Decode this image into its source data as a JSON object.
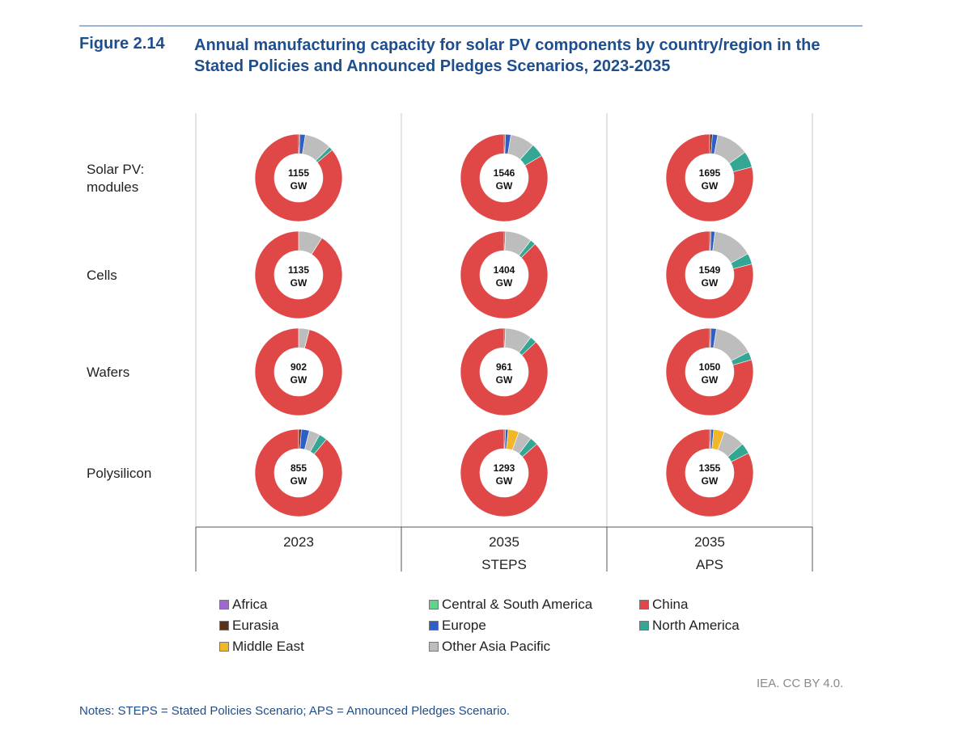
{
  "figure": {
    "label": "Figure 2.14",
    "title": "Annual manufacturing capacity for solar PV components by country/region in the Stated Policies and Announced Pledges Scenarios, 2023-2035"
  },
  "credit": "IEA. CC BY 4.0.",
  "notes": "Notes: STEPS = Stated Policies Scenario; APS = Announced Pledges Scenario.",
  "chart_data": {
    "type": "donut-grid",
    "title": "Annual manufacturing capacity for solar PV components by country/region in the Stated Policies and Announced Pledges Scenarios, 2023-2035",
    "rows": [
      "Solar PV:\nmodules",
      "Cells",
      "Wafers",
      "Polysilicon"
    ],
    "columns": [
      {
        "year": "2023",
        "scenario": ""
      },
      {
        "year": "2035",
        "scenario": "STEPS"
      },
      {
        "year": "2035",
        "scenario": "APS"
      }
    ],
    "regions": [
      {
        "name": "Africa",
        "color": "#a066d3"
      },
      {
        "name": "Central & South America",
        "color": "#5fd38a"
      },
      {
        "name": "China",
        "color": "#e04848"
      },
      {
        "name": "Eurasia",
        "color": "#5a3018"
      },
      {
        "name": "Europe",
        "color": "#2e5fc9"
      },
      {
        "name": "North America",
        "color": "#33a694"
      },
      {
        "name": "Middle East",
        "color": "#f2b629"
      },
      {
        "name": "Other Asia Pacific",
        "color": "#bdbdbd"
      }
    ],
    "legend_order": [
      "Africa",
      "Central & South America",
      "China",
      "Eurasia",
      "Europe",
      "North America",
      "Middle East",
      "Other Asia Pacific"
    ],
    "segment_order": [
      "Africa",
      "Eurasia",
      "Europe",
      "Middle East",
      "Other Asia Pacific",
      "Central & South America",
      "North America",
      "China"
    ],
    "unit": "GW",
    "cells": [
      [
        {
          "total": "1155",
          "shares": {
            "Europe": 0.02,
            "Eurasia": 0.005,
            "Other Asia Pacific": 0.1,
            "North America": 0.015,
            "China": 0.86
          }
        },
        {
          "total": "1546",
          "shares": {
            "Europe": 0.02,
            "Eurasia": 0.005,
            "Other Asia Pacific": 0.09,
            "North America": 0.05,
            "China": 0.835
          }
        },
        {
          "total": "1695",
          "shares": {
            "Europe": 0.02,
            "Eurasia": 0.01,
            "Other Asia Pacific": 0.12,
            "North America": 0.06,
            "China": 0.79
          }
        }
      ],
      [
        {
          "total": "1135",
          "shares": {
            "Other Asia Pacific": 0.09,
            "China": 0.91
          }
        },
        {
          "total": "1404",
          "shares": {
            "Eurasia": 0.005,
            "Other Asia Pacific": 0.1,
            "North America": 0.02,
            "China": 0.875
          }
        },
        {
          "total": "1549",
          "shares": {
            "Europe": 0.015,
            "Eurasia": 0.005,
            "Other Asia Pacific": 0.15,
            "North America": 0.04,
            "China": 0.79
          }
        }
      ],
      [
        {
          "total": "902",
          "shares": {
            "Other Asia Pacific": 0.04,
            "China": 0.96
          }
        },
        {
          "total": "961",
          "shares": {
            "Eurasia": 0.005,
            "Other Asia Pacific": 0.1,
            "North America": 0.025,
            "China": 0.87
          }
        },
        {
          "total": "1050",
          "shares": {
            "Europe": 0.02,
            "Eurasia": 0.005,
            "Other Asia Pacific": 0.15,
            "North America": 0.03,
            "China": 0.795
          }
        }
      ],
      [
        {
          "total": "855",
          "shares": {
            "Europe": 0.03,
            "Eurasia": 0.01,
            "Other Asia Pacific": 0.04,
            "North America": 0.03,
            "China": 0.89
          }
        },
        {
          "total": "1293",
          "shares": {
            "Europe": 0.01,
            "Eurasia": 0.005,
            "Middle East": 0.04,
            "Other Asia Pacific": 0.05,
            "North America": 0.03,
            "China": 0.865
          }
        },
        {
          "total": "1355",
          "shares": {
            "Europe": 0.01,
            "Eurasia": 0.005,
            "Middle East": 0.04,
            "Other Asia Pacific": 0.08,
            "North America": 0.04,
            "China": 0.825
          }
        }
      ]
    ]
  }
}
